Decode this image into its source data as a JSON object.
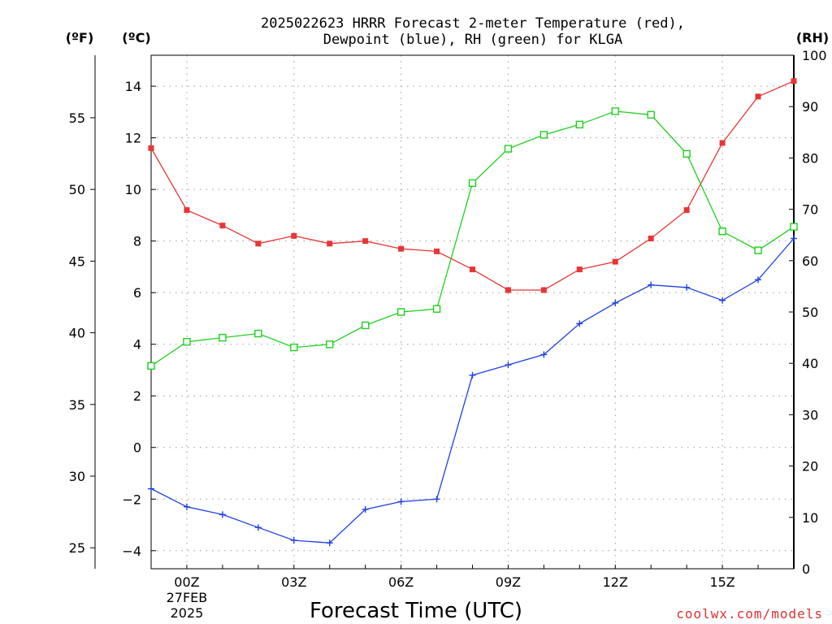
{
  "chart_data": {
    "type": "line",
    "title_line1": "2025022623 HRRR Forecast 2-meter Temperature (red),",
    "title_line2": "Dewpoint (blue), RH (green) for KLGA",
    "xlabel": "Forecast Time (UTC)",
    "credit": "coolwx.com/models",
    "left_units": "(ºF)",
    "mid_units": "(ºC)",
    "right_units": "(RH)",
    "x": [
      "23Z",
      "00Z",
      "01Z",
      "02Z",
      "03Z",
      "04Z",
      "05Z",
      "06Z",
      "07Z",
      "08Z",
      "09Z",
      "10Z",
      "11Z",
      "12Z",
      "13Z",
      "14Z",
      "15Z",
      "16Z",
      "17Z"
    ],
    "x_ticks": [
      {
        "label": "00Z",
        "sub1": "27FEB",
        "sub2": "2025"
      },
      {
        "label": "03Z"
      },
      {
        "label": "06Z"
      },
      {
        "label": "09Z"
      },
      {
        "label": "12Z"
      },
      {
        "label": "15Z"
      }
    ],
    "celsius_ticks": [
      "−4",
      "−2",
      "0",
      "2",
      "4",
      "6",
      "8",
      "10",
      "12",
      "14"
    ],
    "fahrenheit_ticks": [
      "25",
      "30",
      "35",
      "40",
      "45",
      "50",
      "55"
    ],
    "rh_ticks": [
      "0",
      "10",
      "20",
      "30",
      "40",
      "50",
      "60",
      "70",
      "80",
      "90",
      "100"
    ],
    "ylim_c": [
      -4.7,
      15.2
    ],
    "ylim_rh": [
      0,
      100
    ],
    "grid": true,
    "series": [
      {
        "name": "Temperature",
        "color": "#e83535",
        "marker": "filled-square",
        "axis": "celsius",
        "values": [
          11.6,
          9.2,
          8.6,
          7.9,
          8.2,
          7.9,
          8.0,
          7.7,
          7.6,
          6.9,
          6.1,
          6.1,
          6.9,
          7.2,
          8.1,
          9.2,
          11.8,
          13.6,
          14.2
        ]
      },
      {
        "name": "Dewpoint",
        "color": "#2040e0",
        "marker": "plus",
        "axis": "celsius",
        "values": [
          -1.6,
          -2.3,
          -2.6,
          -3.1,
          -3.6,
          -3.7,
          -2.4,
          -2.1,
          -2.0,
          2.8,
          3.2,
          3.6,
          4.8,
          5.6,
          6.3,
          6.2,
          5.7,
          6.5,
          8.1
        ]
      },
      {
        "name": "RH",
        "color": "#20d020",
        "marker": "open-square",
        "axis": "rh",
        "values": [
          39.5,
          44.2,
          45.0,
          45.8,
          43.1,
          43.7,
          47.4,
          50.0,
          50.6,
          75.1,
          81.8,
          84.5,
          86.5,
          89.1,
          88.4,
          80.8,
          65.7,
          62.0,
          66.6
        ]
      }
    ]
  }
}
